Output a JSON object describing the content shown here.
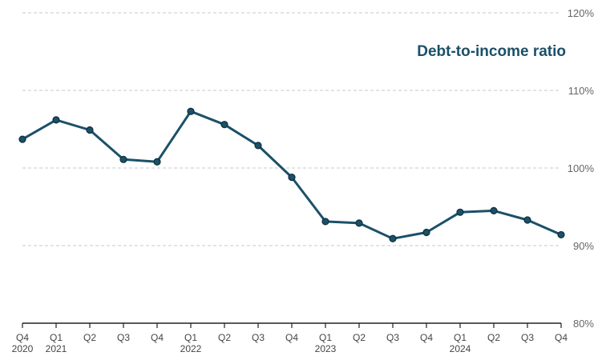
{
  "chart_data": {
    "type": "line",
    "title": "Debt-to-income ratio",
    "xlabel": "",
    "ylabel": "",
    "ylim": [
      80,
      120
    ],
    "yticks": [
      80,
      90,
      100,
      110,
      120
    ],
    "ytick_labels": [
      "80%",
      "90%",
      "100%",
      "110%",
      "120%"
    ],
    "grid": true,
    "categories": [
      "Q4 2020",
      "Q1 2021",
      "Q2 2021",
      "Q3 2021",
      "Q4 2021",
      "Q1 2022",
      "Q2 2022",
      "Q3 2022",
      "Q4 2022",
      "Q1 2023",
      "Q2 2023",
      "Q3 2023",
      "Q4 2023",
      "Q1 2024",
      "Q2 2024",
      "Q3 2024",
      "Q4 2024"
    ],
    "quarter_labels": [
      "Q4",
      "Q1",
      "Q2",
      "Q3",
      "Q4",
      "Q1",
      "Q2",
      "Q3",
      "Q4",
      "Q1",
      "Q2",
      "Q3",
      "Q4",
      "Q1",
      "Q2",
      "Q3",
      "Q4"
    ],
    "year_labels": [
      "2020",
      "2021",
      "",
      "",
      "",
      "2022",
      "",
      "",
      "",
      "2023",
      "",
      "",
      "",
      "2024",
      "",
      "",
      ""
    ],
    "series": [
      {
        "values": [
          103.7,
          106.2,
          104.9,
          101.1,
          100.8,
          107.3,
          105.6,
          102.9,
          98.8,
          93.1,
          92.9,
          90.9,
          91.7,
          94.3,
          94.5,
          93.3,
          91.4
        ],
        "color": "#1b5069"
      }
    ],
    "title_color": "#1b5069"
  }
}
